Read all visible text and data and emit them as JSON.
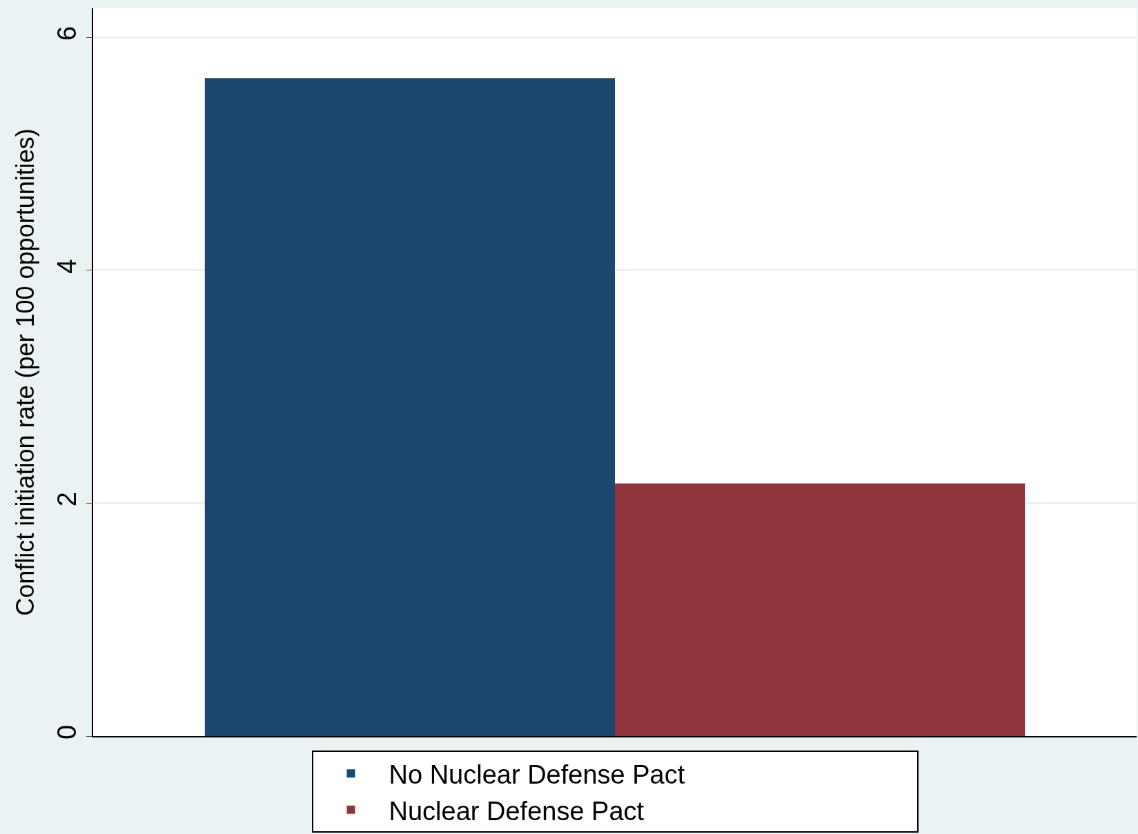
{
  "chart_data": {
    "type": "bar",
    "ylabel": "Conflict initiation rate (per 100 opportunities)",
    "categories": [
      null
    ],
    "series": [
      {
        "name": "No Nuclear Defense Pact",
        "color": "#1c4870",
        "values": [
          5.65
        ]
      },
      {
        "name": "Nuclear Defense Pact",
        "color": "#90353c",
        "values": [
          2.17
        ]
      }
    ],
    "ylim": [
      0,
      6.25
    ],
    "yticks": [
      0,
      2,
      4,
      6
    ],
    "grid": "y",
    "legend": "bottom"
  }
}
